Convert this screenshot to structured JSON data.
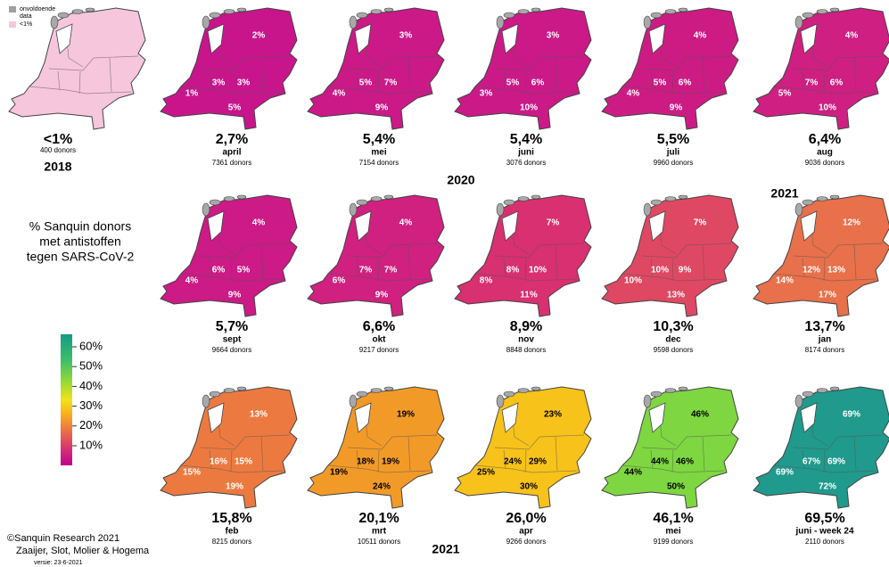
{
  "title": [
    "% Sanquin donors",
    "met antistoffen",
    "tegen SARS-CoV-2"
  ],
  "legend": {
    "items": [
      {
        "label": [
          "onvoldoende",
          "data"
        ],
        "color": "#a0a0a0"
      },
      {
        "label": [
          "<1%"
        ],
        "color": "#f6c6dc"
      }
    ]
  },
  "colorbar": {
    "ticks": [
      "10%",
      "20%",
      "30%",
      "40%",
      "50%",
      "60%"
    ]
  },
  "years": [
    "2018",
    "2020",
    "2021",
    "2021"
  ],
  "credits": [
    "©Sanquin Research 2021",
    "Zaaijer, Slot, Molier & Hogema",
    "versie:  23-6-2021"
  ],
  "maps": [
    {
      "value": "<1%",
      "donors": "400 donors",
      "color": "#f6c6dc",
      "text_color": "#fff",
      "regions": []
    },
    {
      "value": "2,7%",
      "month": "april",
      "donors": "7361 donors",
      "color": "#c8158c",
      "text_color": "#fff",
      "regions": [
        "2%",
        "1%",
        "3%",
        "3%",
        "5%"
      ]
    },
    {
      "value": "5,4%",
      "month": "mei",
      "donors": "7154 donors",
      "color": "#cb1988",
      "text_color": "#fff",
      "regions": [
        "3%",
        "4%",
        "5%",
        "7%",
        "9%"
      ]
    },
    {
      "value": "5,4%",
      "month": "juni",
      "donors": "3076 donors",
      "color": "#cb1988",
      "text_color": "#fff",
      "regions": [
        "3%",
        "3%",
        "5%",
        "6%",
        "10%"
      ]
    },
    {
      "value": "5,5%",
      "month": "juli",
      "donors": "9960 donors",
      "color": "#cd1b84",
      "text_color": "#fff",
      "regions": [
        "4%",
        "4%",
        "5%",
        "6%",
        "9%"
      ]
    },
    {
      "value": "6,4%",
      "month": "aug",
      "donors": "9036 donors",
      "color": "#cf1f82",
      "text_color": "#fff",
      "regions": [
        "4%",
        "5%",
        "7%",
        "6%",
        "10%"
      ]
    },
    {
      "value": "5,7%",
      "month": "sept",
      "donors": "9664 donors",
      "color": "#cc1a86",
      "text_color": "#fff",
      "regions": [
        "4%",
        "4%",
        "6%",
        "5%",
        "9%"
      ]
    },
    {
      "value": "6,6%",
      "month": "okt",
      "donors": "9217 donors",
      "color": "#d02080",
      "text_color": "#fff",
      "regions": [
        "4%",
        "6%",
        "7%",
        "7%",
        "9%"
      ]
    },
    {
      "value": "8,9%",
      "month": "nov",
      "donors": "8848 donors",
      "color": "#d83070",
      "text_color": "#fff",
      "regions": [
        "7%",
        "8%",
        "8%",
        "10%",
        "11%"
      ]
    },
    {
      "value": "10,3%",
      "month": "dec",
      "donors": "9598 donors",
      "color": "#df4862",
      "text_color": "#fff",
      "regions": [
        "7%",
        "10%",
        "10%",
        "9%",
        "13%"
      ]
    },
    {
      "value": "13,7%",
      "month": "jan",
      "donors": "8174 donors",
      "color": "#e8704a",
      "text_color": "#fff",
      "regions": [
        "12%",
        "14%",
        "12%",
        "13%",
        "17%"
      ]
    },
    {
      "value": "15,8%",
      "month": "feb",
      "donors": "8215 donors",
      "color": "#ec7a40",
      "text_color": "#fff",
      "regions": [
        "13%",
        "15%",
        "16%",
        "15%",
        "19%"
      ]
    },
    {
      "value": "20,1%",
      "month": "mrt",
      "donors": "10511 donors",
      "color": "#f29a28",
      "text_color": "#000",
      "regions": [
        "19%",
        "19%",
        "18%",
        "19%",
        "24%"
      ]
    },
    {
      "value": "26,0%",
      "month": "apr",
      "donors": "9266 donors",
      "color": "#f7c21a",
      "text_color": "#000",
      "regions": [
        "23%",
        "25%",
        "24%",
        "29%",
        "30%"
      ]
    },
    {
      "value": "46,1%",
      "month": "mei",
      "donors": "9199 donors",
      "color": "#7ed641",
      "text_color": "#000",
      "regions": [
        "46%",
        "44%",
        "44%",
        "46%",
        "50%"
      ]
    },
    {
      "value": "69,5%",
      "month": "juni - week 24",
      "donors": "2110 donors",
      "color": "#1f9a8c",
      "text_color": "#fff",
      "regions": [
        "69%",
        "69%",
        "67%",
        "69%",
        "72%"
      ]
    }
  ]
}
